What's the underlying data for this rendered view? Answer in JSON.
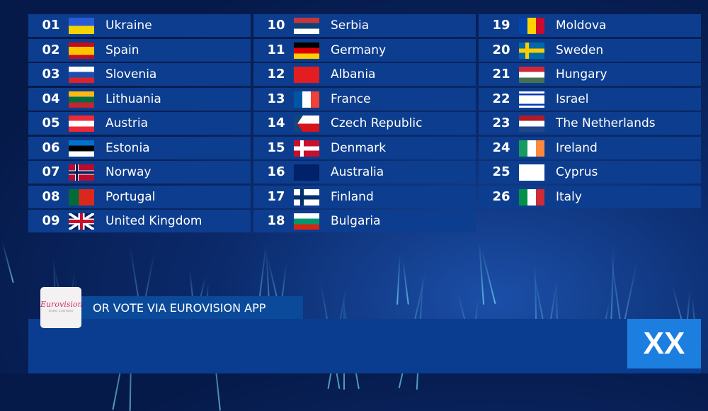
{
  "entries": [
    {
      "num": "01",
      "country": "Ukraine",
      "flag": {
        "type": "h",
        "colors": [
          "#2a5bd7",
          "#f5d400"
        ]
      }
    },
    {
      "num": "02",
      "country": "Spain",
      "flag": {
        "type": "hw",
        "colors": [
          "#c60b1e",
          "#ffc400",
          "#ffc400",
          "#c60b1e"
        ]
      }
    },
    {
      "num": "03",
      "country": "Slovenia",
      "flag": {
        "type": "h",
        "colors": [
          "#ffffff",
          "#1a4fb0",
          "#e0202a"
        ]
      }
    },
    {
      "num": "04",
      "country": "Lithuania",
      "flag": {
        "type": "h",
        "colors": [
          "#fdb913",
          "#006a44",
          "#c1272d"
        ]
      }
    },
    {
      "num": "05",
      "country": "Austria",
      "flag": {
        "type": "h",
        "colors": [
          "#ed2939",
          "#ffffff",
          "#ed2939"
        ]
      }
    },
    {
      "num": "06",
      "country": "Estonia",
      "flag": {
        "type": "h",
        "colors": [
          "#0072ce",
          "#000000",
          "#ffffff"
        ]
      }
    },
    {
      "num": "07",
      "country": "Norway",
      "flag": {
        "type": "cross",
        "colors": [
          "#ba0c2f",
          "#ffffff",
          "#00205b"
        ]
      }
    },
    {
      "num": "08",
      "country": "Portugal",
      "flag": {
        "type": "v2",
        "colors": [
          "#046a38",
          "#da291c"
        ]
      }
    },
    {
      "num": "09",
      "country": "United Kingdom",
      "flag": {
        "type": "uk",
        "colors": [
          "#012169",
          "#ffffff",
          "#c8102e"
        ]
      }
    },
    {
      "num": "10",
      "country": "Serbia",
      "flag": {
        "type": "h",
        "colors": [
          "#c6363c",
          "#0c4076",
          "#ffffff"
        ]
      }
    },
    {
      "num": "11",
      "country": "Germany",
      "flag": {
        "type": "h",
        "colors": [
          "#000000",
          "#dd0000",
          "#ffce00"
        ]
      }
    },
    {
      "num": "12",
      "country": "Albania",
      "flag": {
        "type": "h",
        "colors": [
          "#e41e20"
        ]
      }
    },
    {
      "num": "13",
      "country": "France",
      "flag": {
        "type": "v",
        "colors": [
          "#0055a4",
          "#ffffff",
          "#ef4135"
        ]
      }
    },
    {
      "num": "14",
      "country": "Czech Republic",
      "flag": {
        "type": "cz",
        "colors": [
          "#ffffff",
          "#d7141a",
          "#11457e"
        ]
      }
    },
    {
      "num": "15",
      "country": "Denmark",
      "flag": {
        "type": "cross",
        "colors": [
          "#c8102e",
          "#ffffff",
          "#ffffff"
        ]
      }
    },
    {
      "num": "16",
      "country": "Australia",
      "flag": {
        "type": "h",
        "colors": [
          "#012169"
        ]
      }
    },
    {
      "num": "17",
      "country": "Finland",
      "flag": {
        "type": "cross",
        "colors": [
          "#ffffff",
          "#002f6c",
          "#002f6c"
        ]
      }
    },
    {
      "num": "18",
      "country": "Bulgaria",
      "flag": {
        "type": "h",
        "colors": [
          "#ffffff",
          "#00966e",
          "#d62612"
        ]
      }
    },
    {
      "num": "19",
      "country": "Moldova",
      "flag": {
        "type": "v",
        "colors": [
          "#0046ae",
          "#ffd200",
          "#cc092f"
        ]
      }
    },
    {
      "num": "20",
      "country": "Sweden",
      "flag": {
        "type": "cross",
        "colors": [
          "#006aa7",
          "#fecc00",
          "#fecc00"
        ]
      }
    },
    {
      "num": "21",
      "country": "Hungary",
      "flag": {
        "type": "h",
        "colors": [
          "#ce2939",
          "#ffffff",
          "#477050"
        ]
      }
    },
    {
      "num": "22",
      "country": "Israel",
      "flag": {
        "type": "il",
        "colors": [
          "#ffffff",
          "#0038b8"
        ]
      }
    },
    {
      "num": "23",
      "country": "The Netherlands",
      "flag": {
        "type": "h",
        "colors": [
          "#ae1c28",
          "#ffffff",
          "#21468b"
        ]
      }
    },
    {
      "num": "24",
      "country": "Ireland",
      "flag": {
        "type": "v",
        "colors": [
          "#169b62",
          "#ffffff",
          "#ff883e"
        ]
      }
    },
    {
      "num": "25",
      "country": "Cyprus",
      "flag": {
        "type": "h",
        "colors": [
          "#ffffff"
        ]
      }
    },
    {
      "num": "26",
      "country": "Italy",
      "flag": {
        "type": "v",
        "colors": [
          "#009246",
          "#ffffff",
          "#ce2b37"
        ]
      }
    }
  ],
  "banner": {
    "logo_text": "Eurovision",
    "logo_sub": "SONG CONTEST",
    "vote_text": "OR VOTE VIA EUROVISION APP",
    "badge": "XX"
  }
}
